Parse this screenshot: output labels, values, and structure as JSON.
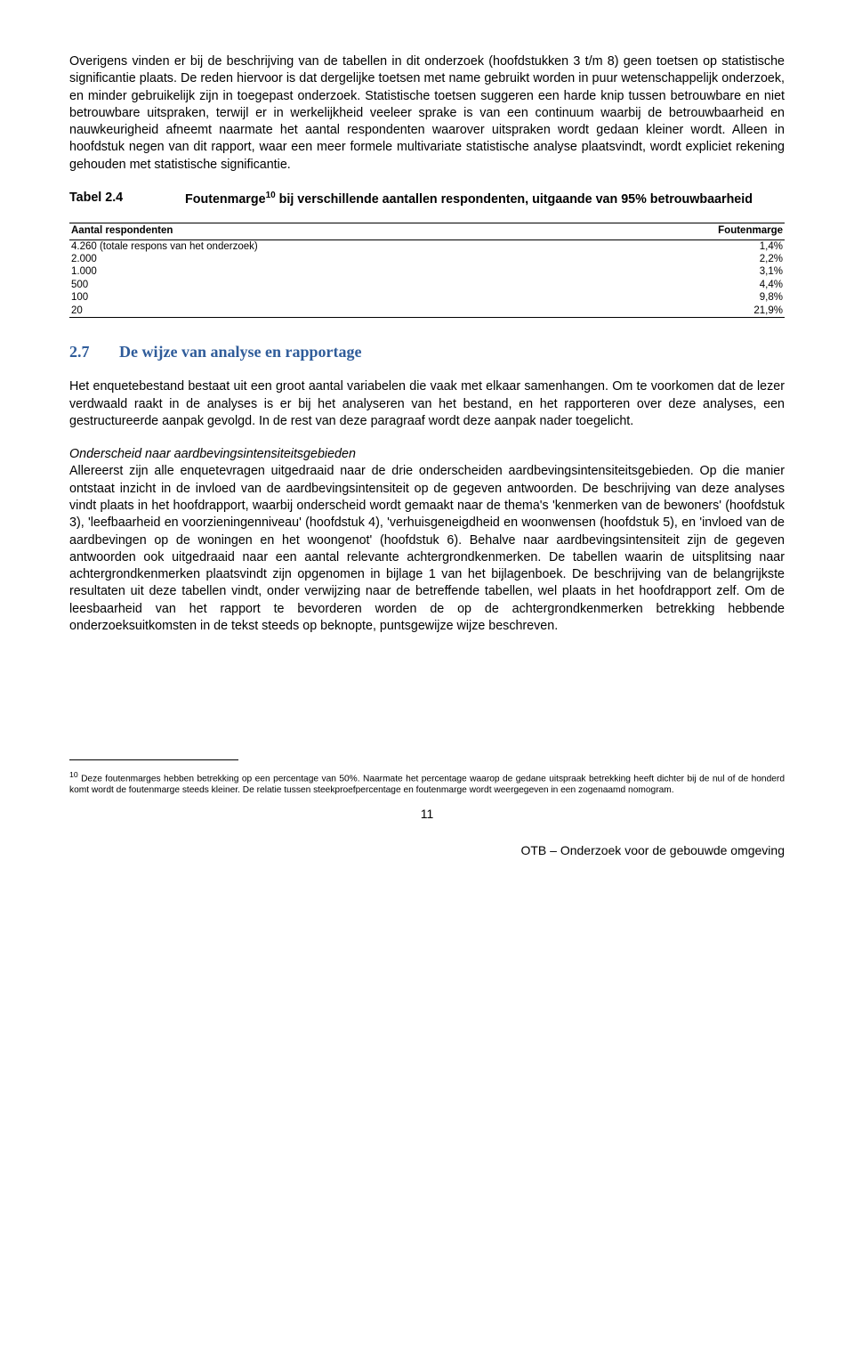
{
  "para1": "Overigens vinden er bij de beschrijving van de tabellen in dit onderzoek (hoofdstukken 3 t/m 8) geen toetsen op statistische significantie plaats. De reden hiervoor is dat dergelijke toetsen met name gebruikt worden in puur wetenschappelijk onderzoek, en minder gebruikelijk zijn in toegepast onderzoek. Statistische toetsen suggeren een harde knip tussen betrouwbare en niet betrouwbare uitspraken, terwijl er in werkelijkheid veeleer sprake is van een continuum waarbij de betrouwbaarheid en nauwkeurigheid afneemt naarmate het aantal respondenten waarover uitspraken wordt gedaan kleiner wordt. Alleen in hoofdstuk negen van dit rapport, waar een meer formele multivariate statistische analyse plaatsvindt, wordt expliciet rekening gehouden met statistische significantie.",
  "table": {
    "label": "Tabel 2.4",
    "title_pre": "Foutenmarge",
    "title_sup": "10",
    "title_post": " bij verschillende aantallen respondenten, uitgaande van 95% betrouwbaarheid",
    "col1": "Aantal respondenten",
    "col2": "Foutenmarge",
    "rows": [
      {
        "a": "4.260 (totale respons van het onderzoek)",
        "b": "1,4%"
      },
      {
        "a": "2.000",
        "b": "2,2%"
      },
      {
        "a": "1.000",
        "b": "3,1%"
      },
      {
        "a": "500",
        "b": "4,4%"
      },
      {
        "a": "100",
        "b": "9,8%"
      },
      {
        "a": "20",
        "b": "21,9%"
      }
    ]
  },
  "section": {
    "num": "2.7",
    "title": "De wijze van analyse en rapportage"
  },
  "para2": "Het enquetebestand bestaat uit een groot aantal variabelen die vaak met elkaar samenhangen. Om te voorkomen dat de lezer verdwaald raakt in de analyses is er bij het analyseren van het bestand, en het rapporteren over deze analyses, een gestructureerde aanpak gevolgd. In de rest van deze paragraaf wordt deze aanpak nader toegelicht.",
  "subhead": "Onderscheid naar aardbevingsintensiteitsgebieden",
  "para3": "Allereerst zijn alle enquetevragen uitgedraaid naar de drie onderscheiden aardbevingsintensiteitsgebieden. Op die manier ontstaat inzicht in de invloed van de aardbevingsintensiteit op de gegeven antwoorden. De beschrijving van deze analyses vindt plaats in het hoofdrapport, waarbij onderscheid wordt gemaakt naar de thema's 'kenmerken van de bewoners' (hoofdstuk 3), 'leefbaarheid en voorzieningenniveau' (hoofdstuk 4), 'verhuisgeneigdheid en woonwensen (hoofdstuk 5), en 'invloed van de aardbevingen op de woningen en het woongenot' (hoofdstuk 6). Behalve naar aardbevingsintensiteit zijn de gegeven antwoorden ook uitgedraaid naar een aantal relevante achtergrondkenmerken. De tabellen waarin de uitsplitsing naar achtergrondkenmerken plaatsvindt zijn opgenomen in bijlage 1 van het bijlagenboek. De beschrijving van de belangrijkste resultaten uit deze tabellen vindt, onder verwijzing naar de betreffende tabellen, wel plaats in het hoofdrapport zelf. Om de leesbaarheid van het rapport te bevorderen worden de op de achtergrondkenmerken betrekking hebbende onderzoeksuitkomsten in de tekst steeds op beknopte, puntsgewijze wijze beschreven.",
  "footnote": {
    "num": "10",
    "text": " Deze foutenmarges hebben betrekking op een percentage van 50%. Naarmate het percentage waarop de gedane uitspraak betrekking heeft dichter bij de nul of de honderd komt wordt de foutenmarge steeds kleiner. De relatie tussen steekproefpercentage en foutenmarge wordt weergegeven in een zogenaamd nomogram."
  },
  "pagenum": "11",
  "footer": "OTB – Onderzoek voor de gebouwde omgeving"
}
